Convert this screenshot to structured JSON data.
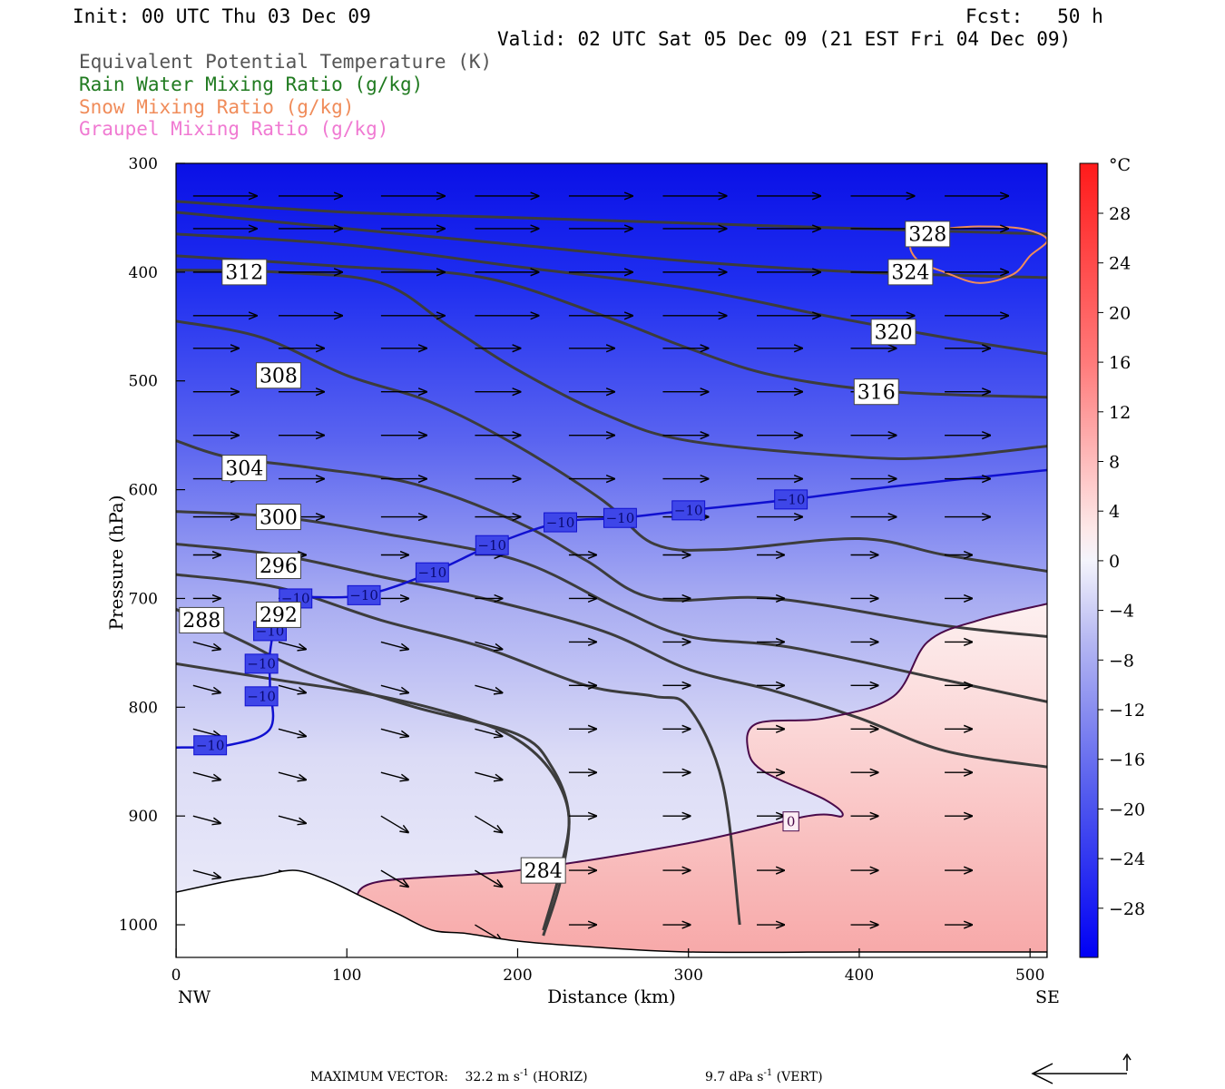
{
  "header": {
    "init": "Init: 00 UTC Thu 03 Dec 09",
    "fcst": "Fcst:   50 h",
    "valid": "Valid: 02 UTC Sat 05 Dec 09 (21 EST Fri 04 Dec 09)"
  },
  "legend": [
    {
      "label": "Equivalent Potential Temperature (K)",
      "color": "#555555"
    },
    {
      "label": "Rain Water Mixing Ratio (g/kg)",
      "color": "#1f7a1f"
    },
    {
      "label": "Snow Mixing Ratio (g/kg)",
      "color": "#f08c5a"
    },
    {
      "label": "Graupel Mixing Ratio (g/kg)",
      "color": "#f07ad2"
    }
  ],
  "axes": {
    "ylabel": "Pressure (hPa)",
    "xlabel": "Distance (km)",
    "left_end": "NW",
    "right_end": "SE"
  },
  "colorbar": {
    "unit": "°C",
    "ticks": [
      "28",
      "24",
      "20",
      "16",
      "12",
      "8",
      "4",
      "0",
      "−4",
      "−8",
      "−12",
      "−16",
      "−20",
      "−24",
      "−28"
    ]
  },
  "footer": {
    "max_vector_label": "MAXIMUM VECTOR:",
    "horiz_value": "32.2 m s",
    "horiz_exp": "-1",
    "horiz_suffix": " (HORIZ)",
    "vert_value": "9.7 dPa s",
    "vert_exp": "-1",
    "vert_suffix": " (VERT)"
  },
  "chart_data": {
    "type": "contour",
    "x": {
      "min": 0,
      "max": 510,
      "ticks": [
        0,
        100,
        200,
        300,
        400,
        500
      ],
      "label": "Distance (km)"
    },
    "y": {
      "min": 1030,
      "max": 300,
      "ticks": [
        300,
        400,
        500,
        600,
        700,
        800,
        900,
        1000
      ],
      "label": "Pressure (hPa)"
    },
    "shading": {
      "variable": "temperature",
      "unit": "°C",
      "range": [
        -30,
        30
      ]
    },
    "theta_e_contours": [
      {
        "label": "328",
        "x": 440,
        "p": 365,
        "points": [
          [
            0,
            335
          ],
          [
            100,
            345
          ],
          [
            200,
            350
          ],
          [
            300,
            355
          ],
          [
            400,
            360
          ],
          [
            510,
            365
          ]
        ]
      },
      {
        "label": "324",
        "x": 430,
        "p": 400,
        "points": [
          [
            0,
            345
          ],
          [
            100,
            360
          ],
          [
            200,
            375
          ],
          [
            300,
            390
          ],
          [
            400,
            400
          ],
          [
            510,
            405
          ]
        ]
      },
      {
        "label": "320",
        "x": 420,
        "p": 455,
        "points": [
          [
            0,
            365
          ],
          [
            100,
            375
          ],
          [
            200,
            395
          ],
          [
            300,
            415
          ],
          [
            380,
            440
          ],
          [
            450,
            460
          ],
          [
            510,
            475
          ]
        ]
      },
      {
        "label": "316",
        "x": 410,
        "p": 510,
        "points": [
          [
            0,
            385
          ],
          [
            100,
            395
          ],
          [
            180,
            405
          ],
          [
            250,
            440
          ],
          [
            300,
            470
          ],
          [
            350,
            495
          ],
          [
            420,
            510
          ],
          [
            510,
            515
          ]
        ]
      },
      {
        "label": "312",
        "x": 40,
        "p": 400,
        "points": [
          [
            0,
            398
          ],
          [
            60,
            400
          ],
          [
            120,
            410
          ],
          [
            160,
            450
          ],
          [
            200,
            490
          ],
          [
            250,
            530
          ],
          [
            300,
            555
          ],
          [
            400,
            570
          ],
          [
            450,
            570
          ],
          [
            510,
            560
          ]
        ]
      },
      {
        "label": "308",
        "x": 60,
        "p": 495,
        "points": [
          [
            0,
            445
          ],
          [
            50,
            460
          ],
          [
            100,
            495
          ],
          [
            150,
            520
          ],
          [
            200,
            560
          ],
          [
            250,
            610
          ],
          [
            280,
            650
          ],
          [
            320,
            655
          ],
          [
            400,
            645
          ],
          [
            450,
            660
          ],
          [
            510,
            675
          ]
        ]
      },
      {
        "label": "304",
        "x": 40,
        "p": 580,
        "points": [
          [
            0,
            555
          ],
          [
            30,
            570
          ],
          [
            80,
            580
          ],
          [
            140,
            595
          ],
          [
            200,
            630
          ],
          [
            240,
            665
          ],
          [
            280,
            700
          ],
          [
            350,
            700
          ],
          [
            450,
            725
          ],
          [
            510,
            735
          ]
        ]
      },
      {
        "label": "300",
        "x": 60,
        "p": 625,
        "points": [
          [
            0,
            620
          ],
          [
            60,
            625
          ],
          [
            120,
            640
          ],
          [
            200,
            665
          ],
          [
            260,
            710
          ],
          [
            300,
            735
          ],
          [
            360,
            745
          ],
          [
            450,
            775
          ],
          [
            510,
            795
          ]
        ]
      },
      {
        "label": "296",
        "x": 60,
        "p": 670,
        "points": [
          [
            0,
            650
          ],
          [
            60,
            660
          ],
          [
            120,
            680
          ],
          [
            180,
            700
          ],
          [
            250,
            730
          ],
          [
            300,
            765
          ],
          [
            350,
            785
          ],
          [
            400,
            810
          ],
          [
            450,
            840
          ],
          [
            510,
            855
          ]
        ]
      },
      {
        "label": "292",
        "x": 60,
        "p": 715,
        "points": [
          [
            0,
            678
          ],
          [
            60,
            690
          ],
          [
            120,
            720
          ],
          [
            180,
            745
          ],
          [
            240,
            780
          ],
          [
            280,
            790
          ],
          [
            300,
            800
          ],
          [
            320,
            870
          ],
          [
            330,
            1000
          ]
        ]
      },
      {
        "label": "288",
        "x": 15,
        "p": 720,
        "points": [
          [
            0,
            710
          ],
          [
            40,
            740
          ],
          [
            80,
            770
          ],
          [
            140,
            800
          ],
          [
            200,
            825
          ],
          [
            220,
            855
          ],
          [
            230,
            900
          ],
          [
            225,
            960
          ],
          [
            215,
            1010
          ]
        ]
      },
      {
        "label": "284",
        "x": 215,
        "p": 950,
        "points": [
          [
            0,
            760
          ],
          [
            60,
            775
          ],
          [
            120,
            790
          ],
          [
            170,
            810
          ],
          [
            200,
            830
          ],
          [
            220,
            860
          ],
          [
            230,
            900
          ],
          [
            225,
            950
          ],
          [
            215,
            1005
          ]
        ]
      }
    ],
    "isotherm_labels": [
      {
        "value": "−10",
        "x": 20,
        "p": 835
      },
      {
        "value": "−10",
        "x": 50,
        "p": 790
      },
      {
        "value": "−10",
        "x": 50,
        "p": 760
      },
      {
        "value": "−10",
        "x": 55,
        "p": 730
      },
      {
        "value": "−10",
        "x": 70,
        "p": 700
      },
      {
        "value": "−10",
        "x": 110,
        "p": 697
      },
      {
        "value": "−10",
        "x": 150,
        "p": 676
      },
      {
        "value": "−10",
        "x": 185,
        "p": 651
      },
      {
        "value": "−10",
        "x": 225,
        "p": 630
      },
      {
        "value": "−10",
        "x": 260,
        "p": 626
      },
      {
        "value": "−10",
        "x": 300,
        "p": 619
      },
      {
        "value": "−10",
        "x": 360,
        "p": 609
      },
      {
        "value": "0",
        "x": 360,
        "p": 905
      }
    ],
    "isotherm_minus10": [
      [
        0,
        837
      ],
      [
        30,
        835
      ],
      [
        55,
        820
      ],
      [
        55,
        780
      ],
      [
        55,
        750
      ],
      [
        60,
        715
      ],
      [
        70,
        700
      ],
      [
        110,
        697
      ],
      [
        150,
        676
      ],
      [
        185,
        651
      ],
      [
        225,
        630
      ],
      [
        260,
        626
      ],
      [
        300,
        619
      ],
      [
        360,
        609
      ],
      [
        420,
        597
      ],
      [
        510,
        582
      ]
    ],
    "isotherm_zero": [
      [
        105,
        975
      ],
      [
        120,
        960
      ],
      [
        200,
        950
      ],
      [
        300,
        925
      ],
      [
        370,
        900
      ],
      [
        390,
        900
      ],
      [
        380,
        885
      ],
      [
        345,
        860
      ],
      [
        335,
        840
      ],
      [
        340,
        815
      ],
      [
        380,
        810
      ],
      [
        420,
        790
      ],
      [
        440,
        740
      ],
      [
        470,
        720
      ],
      [
        510,
        705
      ]
    ],
    "snow_contour": [
      [
        440,
        365
      ],
      [
        430,
        375
      ],
      [
        435,
        390
      ],
      [
        450,
        400
      ],
      [
        470,
        410
      ],
      [
        490,
        402
      ],
      [
        500,
        385
      ],
      [
        510,
        370
      ],
      [
        495,
        360
      ],
      [
        470,
        358
      ],
      [
        450,
        360
      ]
    ],
    "terrain": [
      [
        0,
        970
      ],
      [
        30,
        960
      ],
      [
        50,
        955
      ],
      [
        70,
        950
      ],
      [
        90,
        960
      ],
      [
        110,
        975
      ],
      [
        130,
        990
      ],
      [
        150,
        1005
      ],
      [
        170,
        1008
      ],
      [
        200,
        1015
      ],
      [
        240,
        1020
      ],
      [
        300,
        1025
      ],
      [
        400,
        1025
      ],
      [
        510,
        1025
      ]
    ],
    "vectors": {
      "rows_p": [
        330,
        360,
        400,
        440,
        470,
        510,
        550,
        590,
        625,
        660,
        700,
        740,
        780,
        820,
        860,
        900,
        950,
        1000
      ],
      "cols_x": [
        10,
        60,
        120,
        175,
        230,
        285,
        340,
        395,
        450
      ]
    }
  }
}
